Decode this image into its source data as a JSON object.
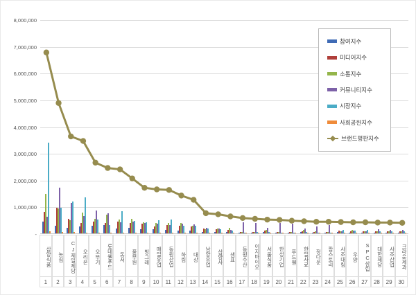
{
  "chart_data": {
    "type": "bar",
    "note": "grouped bar chart with overlaid line series, legend inside plot right",
    "title": "",
    "xlabel": "",
    "ylabel": "",
    "ylim": [
      0,
      8000000
    ],
    "grid": true,
    "legend_position": "right-inside",
    "y_ticks": [
      "8,000,000",
      "7,000,000",
      "6,000,000",
      "5,000,000",
      "4,000,000",
      "3,000,000",
      "2,000,000",
      "1,000,000",
      "-"
    ],
    "categories": [
      "삼양식품",
      "농심",
      "CJ제일제당",
      "오리온",
      "오뚜기",
      "롯데웰푸드",
      "동서",
      "풀무원",
      "빙그레",
      "매일유업",
      "동원산업",
      "하림",
      "대상",
      "남양유업",
      "삼양사",
      "샘표",
      "동원수산",
      "이지바이오",
      "서울식품",
      "한성기업",
      "푸드웰",
      "한일사료",
      "정다운",
      "팜스토리",
      "사조대림",
      "우양",
      "SPC삼립",
      "대한제당",
      "사조산업",
      "크라운제과"
    ],
    "ranks": [
      1,
      2,
      3,
      4,
      5,
      6,
      7,
      8,
      9,
      10,
      11,
      12,
      13,
      14,
      15,
      16,
      17,
      18,
      19,
      20,
      21,
      22,
      23,
      24,
      25,
      26,
      27,
      28,
      29,
      30
    ],
    "series": [
      {
        "name": "참여지수",
        "type": "bar",
        "color": "#3f6bb5",
        "values": [
          430000,
          290000,
          200000,
          270000,
          280000,
          300000,
          180000,
          200000,
          150000,
          150000,
          120000,
          100000,
          100000,
          60000,
          60000,
          50000,
          30000,
          30000,
          40000,
          20000,
          20000,
          40000,
          30000,
          20000,
          40000,
          30000,
          30000,
          30000,
          30000,
          30000
        ]
      },
      {
        "name": "미디어지수",
        "type": "bar",
        "color": "#b03f3a",
        "values": [
          800000,
          960000,
          550000,
          400000,
          450000,
          400000,
          450000,
          400000,
          350000,
          270000,
          300000,
          280000,
          260000,
          180000,
          160000,
          140000,
          60000,
          50000,
          100000,
          40000,
          40000,
          90000,
          60000,
          50000,
          100000,
          80000,
          80000,
          70000,
          80000,
          90000
        ]
      },
      {
        "name": "소통지수",
        "type": "bar",
        "color": "#94b54a",
        "values": [
          1470000,
          920000,
          500000,
          780000,
          550000,
          700000,
          520000,
          550000,
          420000,
          380000,
          380000,
          400000,
          280000,
          150000,
          180000,
          200000,
          50000,
          60000,
          120000,
          50000,
          40000,
          120000,
          70000,
          60000,
          90000,
          120000,
          90000,
          80000,
          90000,
          70000
        ]
      },
      {
        "name": "커뮤니티지수",
        "type": "bar",
        "color": "#7d61a8",
        "values": [
          630000,
          1720000,
          1150000,
          650000,
          850000,
          750000,
          420000,
          450000,
          380000,
          350000,
          300000,
          350000,
          340000,
          200000,
          170000,
          140000,
          420000,
          380000,
          220000,
          380000,
          370000,
          170000,
          260000,
          300000,
          80000,
          100000,
          90000,
          150000,
          140000,
          130000
        ]
      },
      {
        "name": "시장지수",
        "type": "bar",
        "color": "#4bacc6",
        "values": [
          3380000,
          950000,
          1200000,
          1350000,
          520000,
          300000,
          830000,
          460000,
          410000,
          500000,
          530000,
          290000,
          280000,
          170000,
          150000,
          110000,
          30000,
          40000,
          50000,
          30000,
          20000,
          50000,
          30000,
          20000,
          130000,
          100000,
          140000,
          90000,
          80000,
          90000
        ]
      },
      {
        "name": "사회공헌지수",
        "type": "bar",
        "color": "#ef8b3a",
        "values": [
          80000,
          60000,
          50000,
          30000,
          20000,
          20000,
          20000,
          20000,
          20000,
          20000,
          20000,
          20000,
          20000,
          20000,
          20000,
          20000,
          10000,
          10000,
          10000,
          10000,
          10000,
          10000,
          10000,
          10000,
          10000,
          10000,
          10000,
          10000,
          10000,
          10000
        ]
      },
      {
        "name": "브랜드평판지수",
        "type": "line",
        "color": "#968c4e",
        "values": [
          6790000,
          4900000,
          3650000,
          3480000,
          2670000,
          2470000,
          2420000,
          2080000,
          1730000,
          1670000,
          1650000,
          1440000,
          1280000,
          780000,
          740000,
          660000,
          600000,
          570000,
          540000,
          530000,
          500000,
          480000,
          460000,
          460000,
          450000,
          440000,
          440000,
          430000,
          430000,
          420000
        ]
      }
    ]
  }
}
